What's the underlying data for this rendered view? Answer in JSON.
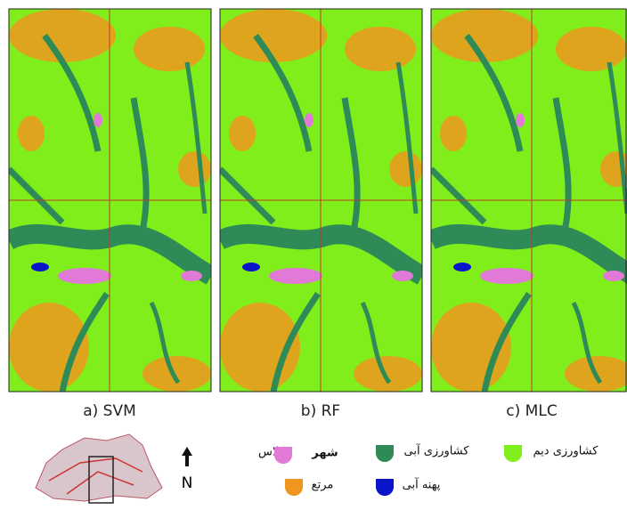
{
  "panels": [
    {
      "caption": "a) SVM"
    },
    {
      "caption": "b) RF"
    },
    {
      "caption": "c) MLC"
    }
  ],
  "legend": {
    "title": ":کلاس",
    "classes": [
      {
        "label": "شهر",
        "color": "#e07ad6"
      },
      {
        "label": "کشاورزی آبی",
        "color": "#2e8b57"
      },
      {
        "label": "کشاورزی دیم",
        "color": "#80ee1a"
      },
      {
        "label": "مرتع",
        "color": "#f0961e"
      },
      {
        "label": "پهنه آبی",
        "color": "#0a14c8"
      }
    ]
  },
  "north_arrow": {
    "label": "N"
  }
}
